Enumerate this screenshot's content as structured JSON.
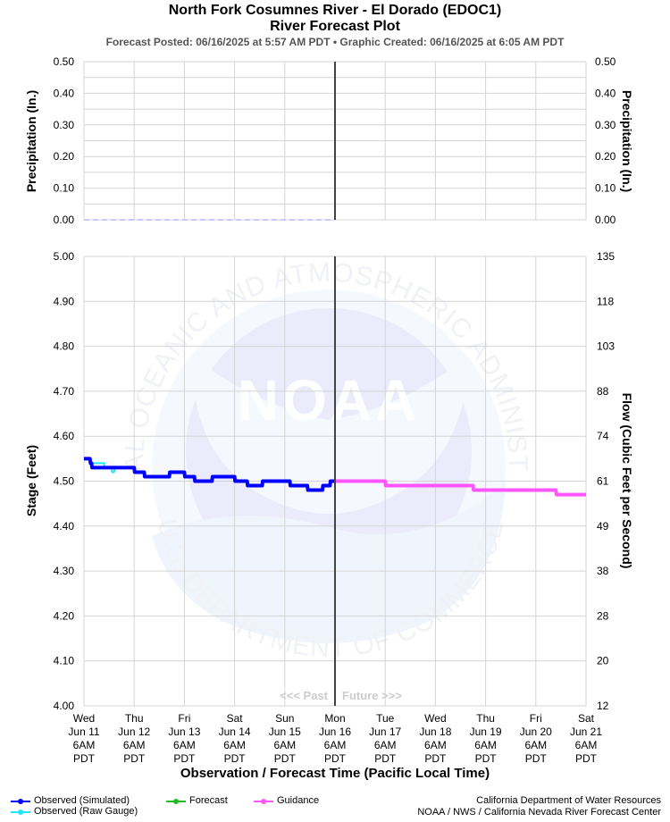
{
  "header": {
    "title": "North Fork Cosumnes River - El Dorado (EDOC1)",
    "subtitle": "River Forecast Plot",
    "info": "Forecast Posted: 06/16/2025 at 5:57 AM PDT  •  Graphic Created: 06/16/2025 at 6:05 AM PDT"
  },
  "chart_data": [
    {
      "type": "line",
      "name": "precipitation",
      "ylabel_left": "Precipitation (In.)",
      "ylabel_right": "Precipitation (In.)",
      "ylim": [
        0,
        0.5
      ],
      "yticks": [
        "0.00",
        "0.10",
        "0.20",
        "0.30",
        "0.40",
        "0.50"
      ],
      "grid": true,
      "series": [
        {
          "name": "",
          "color": "#b8b8ff",
          "style": "dashed",
          "x": [
            0,
            5
          ],
          "values": [
            0,
            0
          ]
        }
      ]
    },
    {
      "type": "line",
      "name": "stage",
      "ylabel_left": "Stage (Feet)",
      "ylabel_right": "Flow (Cubic Feet per Second)",
      "xlabel": "Observation / Forecast Time (Pacific Local Time)",
      "ylim": [
        4.0,
        5.0
      ],
      "yticks": [
        "4.00",
        "4.10",
        "4.20",
        "4.30",
        "4.40",
        "4.50",
        "4.60",
        "4.70",
        "4.80",
        "4.90",
        "5.00"
      ],
      "yticks_right": [
        "12",
        "20",
        "28",
        "38",
        "49",
        "61",
        "74",
        "88",
        "103",
        "118",
        "135"
      ],
      "xlim_days": [
        0,
        10
      ],
      "xtick_labels": [
        [
          "Wed",
          "Jun 11",
          "6AM",
          "PDT"
        ],
        [
          "Thu",
          "Jun 12",
          "6AM",
          "PDT"
        ],
        [
          "Fri",
          "Jun 13",
          "6AM",
          "PDT"
        ],
        [
          "Sat",
          "Jun 14",
          "6AM",
          "PDT"
        ],
        [
          "Sun",
          "Jun 15",
          "6AM",
          "PDT"
        ],
        [
          "Mon",
          "Jun 16",
          "6AM",
          "PDT"
        ],
        [
          "Tue",
          "Jun 17",
          "6AM",
          "PDT"
        ],
        [
          "Wed",
          "Jun 18",
          "6AM",
          "PDT"
        ],
        [
          "Thu",
          "Jun 19",
          "6AM",
          "PDT"
        ],
        [
          "Fri",
          "Jun 20",
          "6AM",
          "PDT"
        ],
        [
          "Sat",
          "Jun 21",
          "6AM",
          "PDT"
        ]
      ],
      "now_line_day": 5.0,
      "past_label": "<<< Past",
      "future_label": "Future >>>",
      "grid": true,
      "series": [
        {
          "name": "Observed (Raw Gauge)",
          "color": "#22e5ff",
          "x": [
            0,
            0.12,
            0.13,
            0.4,
            0.41,
            0.55,
            0.56,
            0.6,
            0.61,
            1.0,
            1.01,
            1.2,
            1.21,
            1.7,
            1.71,
            2.0,
            2.01,
            2.2,
            2.21,
            2.55,
            2.56,
            3.0,
            3.01,
            3.25,
            3.26,
            3.55,
            3.56,
            4.1,
            4.11,
            4.25,
            4.26,
            4.45,
            4.46,
            4.75,
            4.76,
            4.9,
            4.91,
            5.0
          ],
          "values": [
            4.55,
            4.55,
            4.54,
            4.54,
            4.53,
            4.53,
            4.52,
            4.52,
            4.53,
            4.53,
            4.52,
            4.52,
            4.51,
            4.51,
            4.52,
            4.52,
            4.51,
            4.51,
            4.5,
            4.5,
            4.51,
            4.51,
            4.5,
            4.5,
            4.49,
            4.49,
            4.5,
            4.5,
            4.49,
            4.49,
            4.49,
            4.49,
            4.48,
            4.48,
            4.49,
            4.49,
            4.5,
            4.5
          ]
        },
        {
          "name": "Observed (Simulated)",
          "color": "#0000ff",
          "x": [
            0,
            0.12,
            0.13,
            0.15,
            0.16,
            1.0,
            1.01,
            1.2,
            1.21,
            1.7,
            1.71,
            2.0,
            2.01,
            2.2,
            2.21,
            2.55,
            2.56,
            3.0,
            3.01,
            3.25,
            3.26,
            3.55,
            3.56,
            4.1,
            4.11,
            4.25,
            4.26,
            4.45,
            4.46,
            4.75,
            4.76,
            4.9,
            4.91,
            5.0
          ],
          "values": [
            4.55,
            4.55,
            4.54,
            4.54,
            4.53,
            4.53,
            4.52,
            4.52,
            4.51,
            4.51,
            4.52,
            4.52,
            4.51,
            4.51,
            4.5,
            4.5,
            4.51,
            4.51,
            4.5,
            4.5,
            4.49,
            4.49,
            4.5,
            4.5,
            4.49,
            4.49,
            4.49,
            4.49,
            4.48,
            4.48,
            4.49,
            4.49,
            4.5,
            4.5
          ]
        },
        {
          "name": "Guidance",
          "color": "#ff55ff",
          "x": [
            5.0,
            6.0,
            6.01,
            7.75,
            7.76,
            8.0,
            8.01,
            9.4,
            9.41,
            10.0
          ],
          "values": [
            4.5,
            4.5,
            4.49,
            4.49,
            4.48,
            4.48,
            4.48,
            4.48,
            4.47,
            4.47
          ]
        }
      ]
    }
  ],
  "legend": {
    "observed_simulated": {
      "label": "Observed (Simulated)",
      "color": "#0000ff"
    },
    "observed_raw": {
      "label": "Observed (Raw Gauge)",
      "color": "#22e5ff"
    },
    "forecast": {
      "label": "Forecast",
      "color": "#22bb22"
    },
    "guidance": {
      "label": "Guidance",
      "color": "#ff55ff"
    }
  },
  "watermark": {
    "center_text": "NOAA",
    "ring_top": "NATIONAL OCEANIC AND ATMOSPHERIC ADMINISTRATION",
    "ring_bottom": "U.S. DEPARTMENT OF COMMERCE"
  },
  "footer": {
    "credit1": "California Department of Water Resources",
    "credit2": "NOAA / NWS / California Nevada River Forecast Center"
  }
}
